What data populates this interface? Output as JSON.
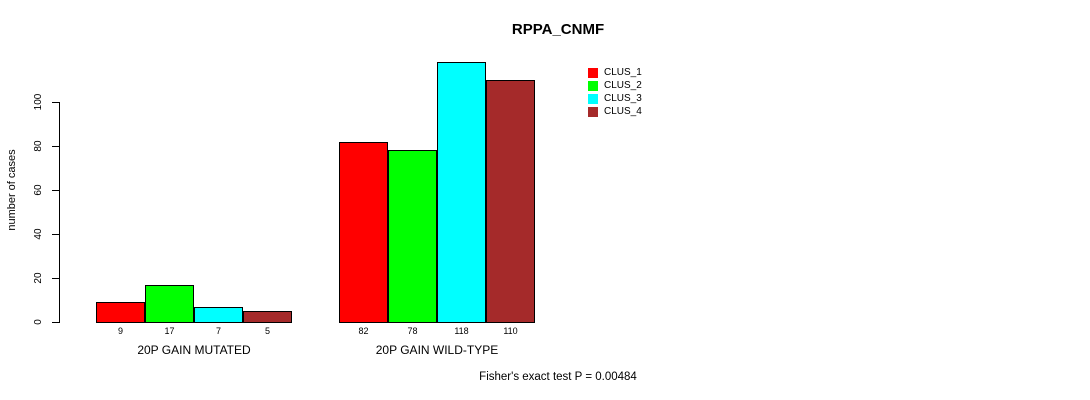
{
  "chart_data": {
    "type": "bar",
    "title": "RPPA_CNMF",
    "xlabel": "",
    "ylabel": "number of cases",
    "categories": [
      "20P GAIN MUTATED",
      "20P GAIN WILD-TYPE"
    ],
    "series": [
      {
        "name": "CLUS_1",
        "color": "#FF0000",
        "values": [
          9,
          82
        ]
      },
      {
        "name": "CLUS_2",
        "color": "#00FF00",
        "values": [
          17,
          78
        ]
      },
      {
        "name": "CLUS_3",
        "color": "#00FFFF",
        "values": [
          7,
          118
        ]
      },
      {
        "name": "CLUS_4",
        "color": "#A52A2A",
        "values": [
          5,
          110
        ]
      }
    ],
    "bar_value_labels": [
      [
        "9",
        "17",
        "7",
        "5"
      ],
      [
        "82",
        "78",
        "118",
        "110"
      ]
    ],
    "yticks": [
      0,
      20,
      40,
      60,
      80,
      100
    ],
    "ylim": [
      0,
      120
    ],
    "grid": false,
    "legend_position": "top-right",
    "axis_color": "#000000",
    "background_color": "#FFFFFF",
    "annotation": "Fisher's exact test P = 0.00484"
  }
}
